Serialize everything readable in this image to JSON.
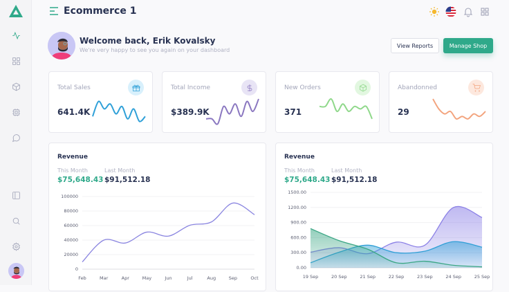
{
  "app": {
    "title": "Ecommerce 1"
  },
  "sidebar": {
    "items": [
      {
        "icon": "activity-icon",
        "active": true
      },
      {
        "icon": "grid-icon"
      },
      {
        "icon": "box-icon"
      },
      {
        "icon": "cpu-icon"
      },
      {
        "icon": "message-icon"
      },
      {
        "icon": "sidebar-panel-icon"
      },
      {
        "icon": "search-icon"
      },
      {
        "icon": "settings-icon"
      }
    ]
  },
  "header": {
    "icons": [
      "sun-icon",
      "us-flag-icon",
      "bell-icon",
      "apps-grid-icon"
    ]
  },
  "welcome": {
    "title": "Welcome back, Erik Kovalsky",
    "subtitle": "We're very happy to see you again on your dashboard"
  },
  "buttons": {
    "view_reports": "View Reports",
    "manage_shop": "Manage Shop"
  },
  "colors": {
    "accent": "#2fa98a",
    "blue": "#2fa0d8",
    "purple": "#8a77c0",
    "green": "#8fd88a",
    "orange": "#f3a47e"
  },
  "stats": [
    {
      "label": "Total Sales",
      "value": "641.4K",
      "icon": "gift-icon",
      "color": "#2fa0d8",
      "bg": "#d8f0fc",
      "spark": [
        3,
        9,
        6,
        8,
        4,
        7,
        2,
        6,
        1,
        3
      ]
    },
    {
      "label": "Total Income",
      "value": "$389.9K",
      "icon": "dollar-icon",
      "color": "#8a77c0",
      "bg": "#e8e4f5",
      "spark": [
        2,
        2,
        0,
        7,
        4,
        8,
        3,
        9,
        5,
        10
      ]
    },
    {
      "label": "New Orders",
      "value": "371",
      "icon": "box-icon",
      "color": "#8fd88a",
      "bg": "#e2f7e0",
      "spark": [
        7,
        7,
        10,
        5,
        8,
        5,
        7,
        6,
        7,
        2
      ]
    },
    {
      "label": "Abandonned",
      "value": "29",
      "icon": "cart-icon",
      "color": "#f3a47e",
      "bg": "#fde8de",
      "spark": [
        10,
        6,
        4,
        5,
        2,
        3,
        2,
        4,
        3,
        5
      ]
    }
  ],
  "revenue_cards": [
    {
      "title": "Revenue",
      "this_month_label": "This Month",
      "this_month": "$75,648.43",
      "last_month_label": "Last Month",
      "last_month": "$91,512.18"
    },
    {
      "title": "Revenue",
      "this_month_label": "This Month",
      "this_month": "$75,648.43",
      "last_month_label": "Last Month",
      "last_month": "$91,512.18"
    }
  ],
  "chart_data": [
    {
      "type": "line",
      "categories": [
        "Feb",
        "Mar",
        "Apr",
        "May",
        "Jun",
        "Jul",
        "Aug",
        "Sep",
        "Oct"
      ],
      "series": [
        {
          "values": [
            10000,
            40000,
            36000,
            51000,
            45500,
            60500,
            65000,
            91000,
            75000
          ],
          "color": "#8a85e0"
        }
      ],
      "ylim": [
        0,
        100000
      ],
      "yticks": [
        "0",
        "20000",
        "40000",
        "60000",
        "80000",
        "100000"
      ],
      "grid": true
    },
    {
      "type": "area",
      "categories": [
        "19 Sep",
        "20 Sep",
        "21 Sep",
        "22 Sep",
        "23 Sep",
        "24 Sep",
        "25 Sep"
      ],
      "series": [
        {
          "values": [
            310,
            400,
            280,
            510,
            450,
            1200,
            1000
          ],
          "color": "#8b80e6"
        },
        {
          "values": [
            100,
            310,
            450,
            300,
            330,
            520,
            410
          ],
          "color": "#2f9fd6"
        },
        {
          "values": [
            780,
            540,
            370,
            100,
            130,
            50,
            20
          ],
          "color": "#3aa684"
        }
      ],
      "ylim": [
        0,
        1500
      ],
      "yticks": [
        "0.00",
        "300.00",
        "600.00",
        "900.00",
        "1200.00",
        "1500.00"
      ],
      "grid": true
    }
  ]
}
